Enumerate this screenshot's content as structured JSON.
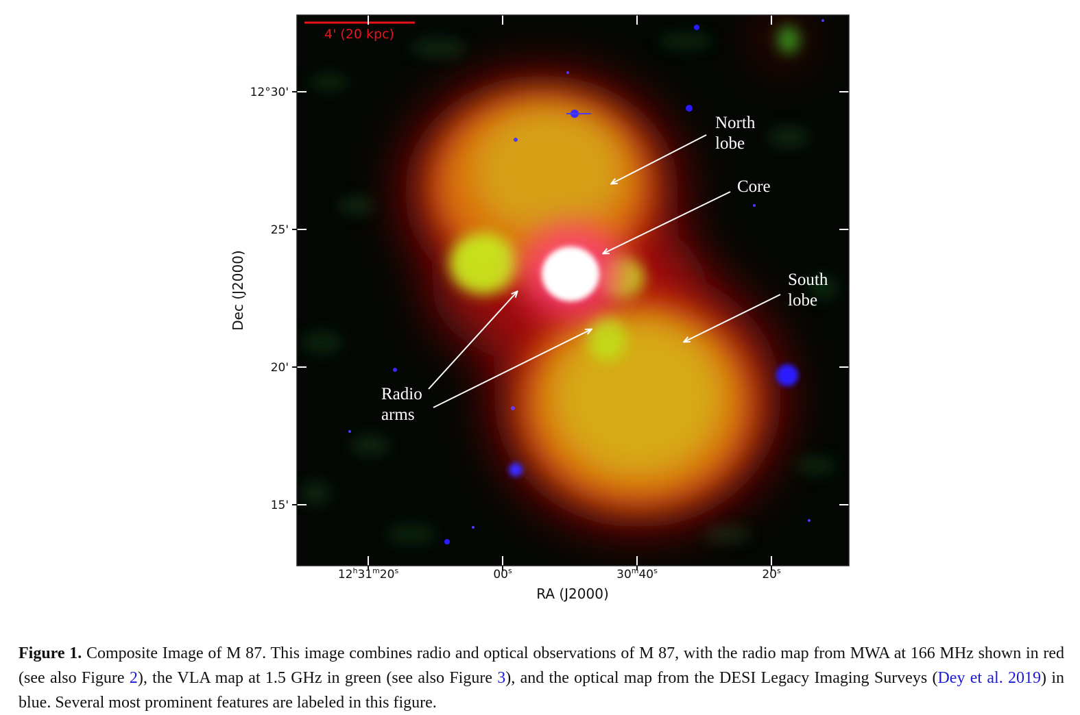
{
  "figure": {
    "scalebar_label": "4' (20 kpc)",
    "dec_ticks": [
      "12°30'",
      "25'",
      "20'",
      "15'"
    ],
    "ra_ticks": [
      {
        "h": "12",
        "h_sup": "h",
        "m": "31",
        "m_sup": "m",
        "s": "20",
        "s_sup": "s"
      },
      {
        "s": "00",
        "s_sup": "s"
      },
      {
        "m": "30",
        "m_sup": "m",
        "s": "40",
        "s_sup": "s"
      },
      {
        "s": "20",
        "s_sup": "s"
      }
    ],
    "xlabel": "RA (J2000)",
    "ylabel": "Dec (J2000)",
    "annotations": {
      "north_line1": "North",
      "north_line2": "lobe",
      "core": "Core",
      "south_line1": "South",
      "south_line2": "lobe",
      "radio_line1": "Radio",
      "radio_line2": "arms"
    },
    "colors": {
      "radio_red": "#e01010",
      "vla_green": "#9acd14",
      "optical_blue": "#2a1aff",
      "scalebar": "#e8141e"
    }
  },
  "caption": {
    "label": "Figure 1.",
    "text1": " Composite Image of M 87. This image combines radio and optical observations of M 87, with the radio map from MWA at 166 MHz shown in red (see also Figure ",
    "ref_fig2": "2",
    "text2": "), the VLA map at 1.5 GHz in green (see also Figure ",
    "ref_fig3": "3",
    "text3": "), and the optical map from the DESI Legacy Imaging Surveys (",
    "ref_dey": "Dey et al. 2019",
    "text4": ") in blue. Several most prominent features are labeled in this figure."
  }
}
